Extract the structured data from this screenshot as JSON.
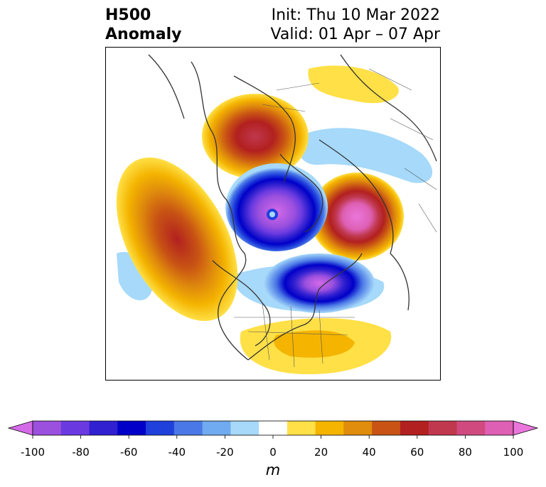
{
  "header": {
    "title_line1": "H500",
    "title_line2": "Anomaly",
    "init_text": "Init: Thu 10 Mar 2022",
    "valid_text": "Valid: 01 Apr – 07 Apr"
  },
  "colorbar": {
    "unit": "m",
    "ticks": [
      "-100",
      "-80",
      "-60",
      "-40",
      "-20",
      "0",
      "20",
      "40",
      "60",
      "80",
      "100"
    ],
    "range": [
      -100,
      100
    ],
    "colors": [
      "#d56ae8",
      "#9b50de",
      "#6a3ae0",
      "#3020d0",
      "#0000c8",
      "#2040dc",
      "#4a78e6",
      "#70aaf0",
      "#a6d9fa",
      "#ffffff",
      "#ffe046",
      "#f4b400",
      "#e08c0c",
      "#c85314",
      "#b2201f",
      "#c0384e",
      "#d04a80",
      "#de60b4",
      "#ea76dc"
    ]
  }
}
